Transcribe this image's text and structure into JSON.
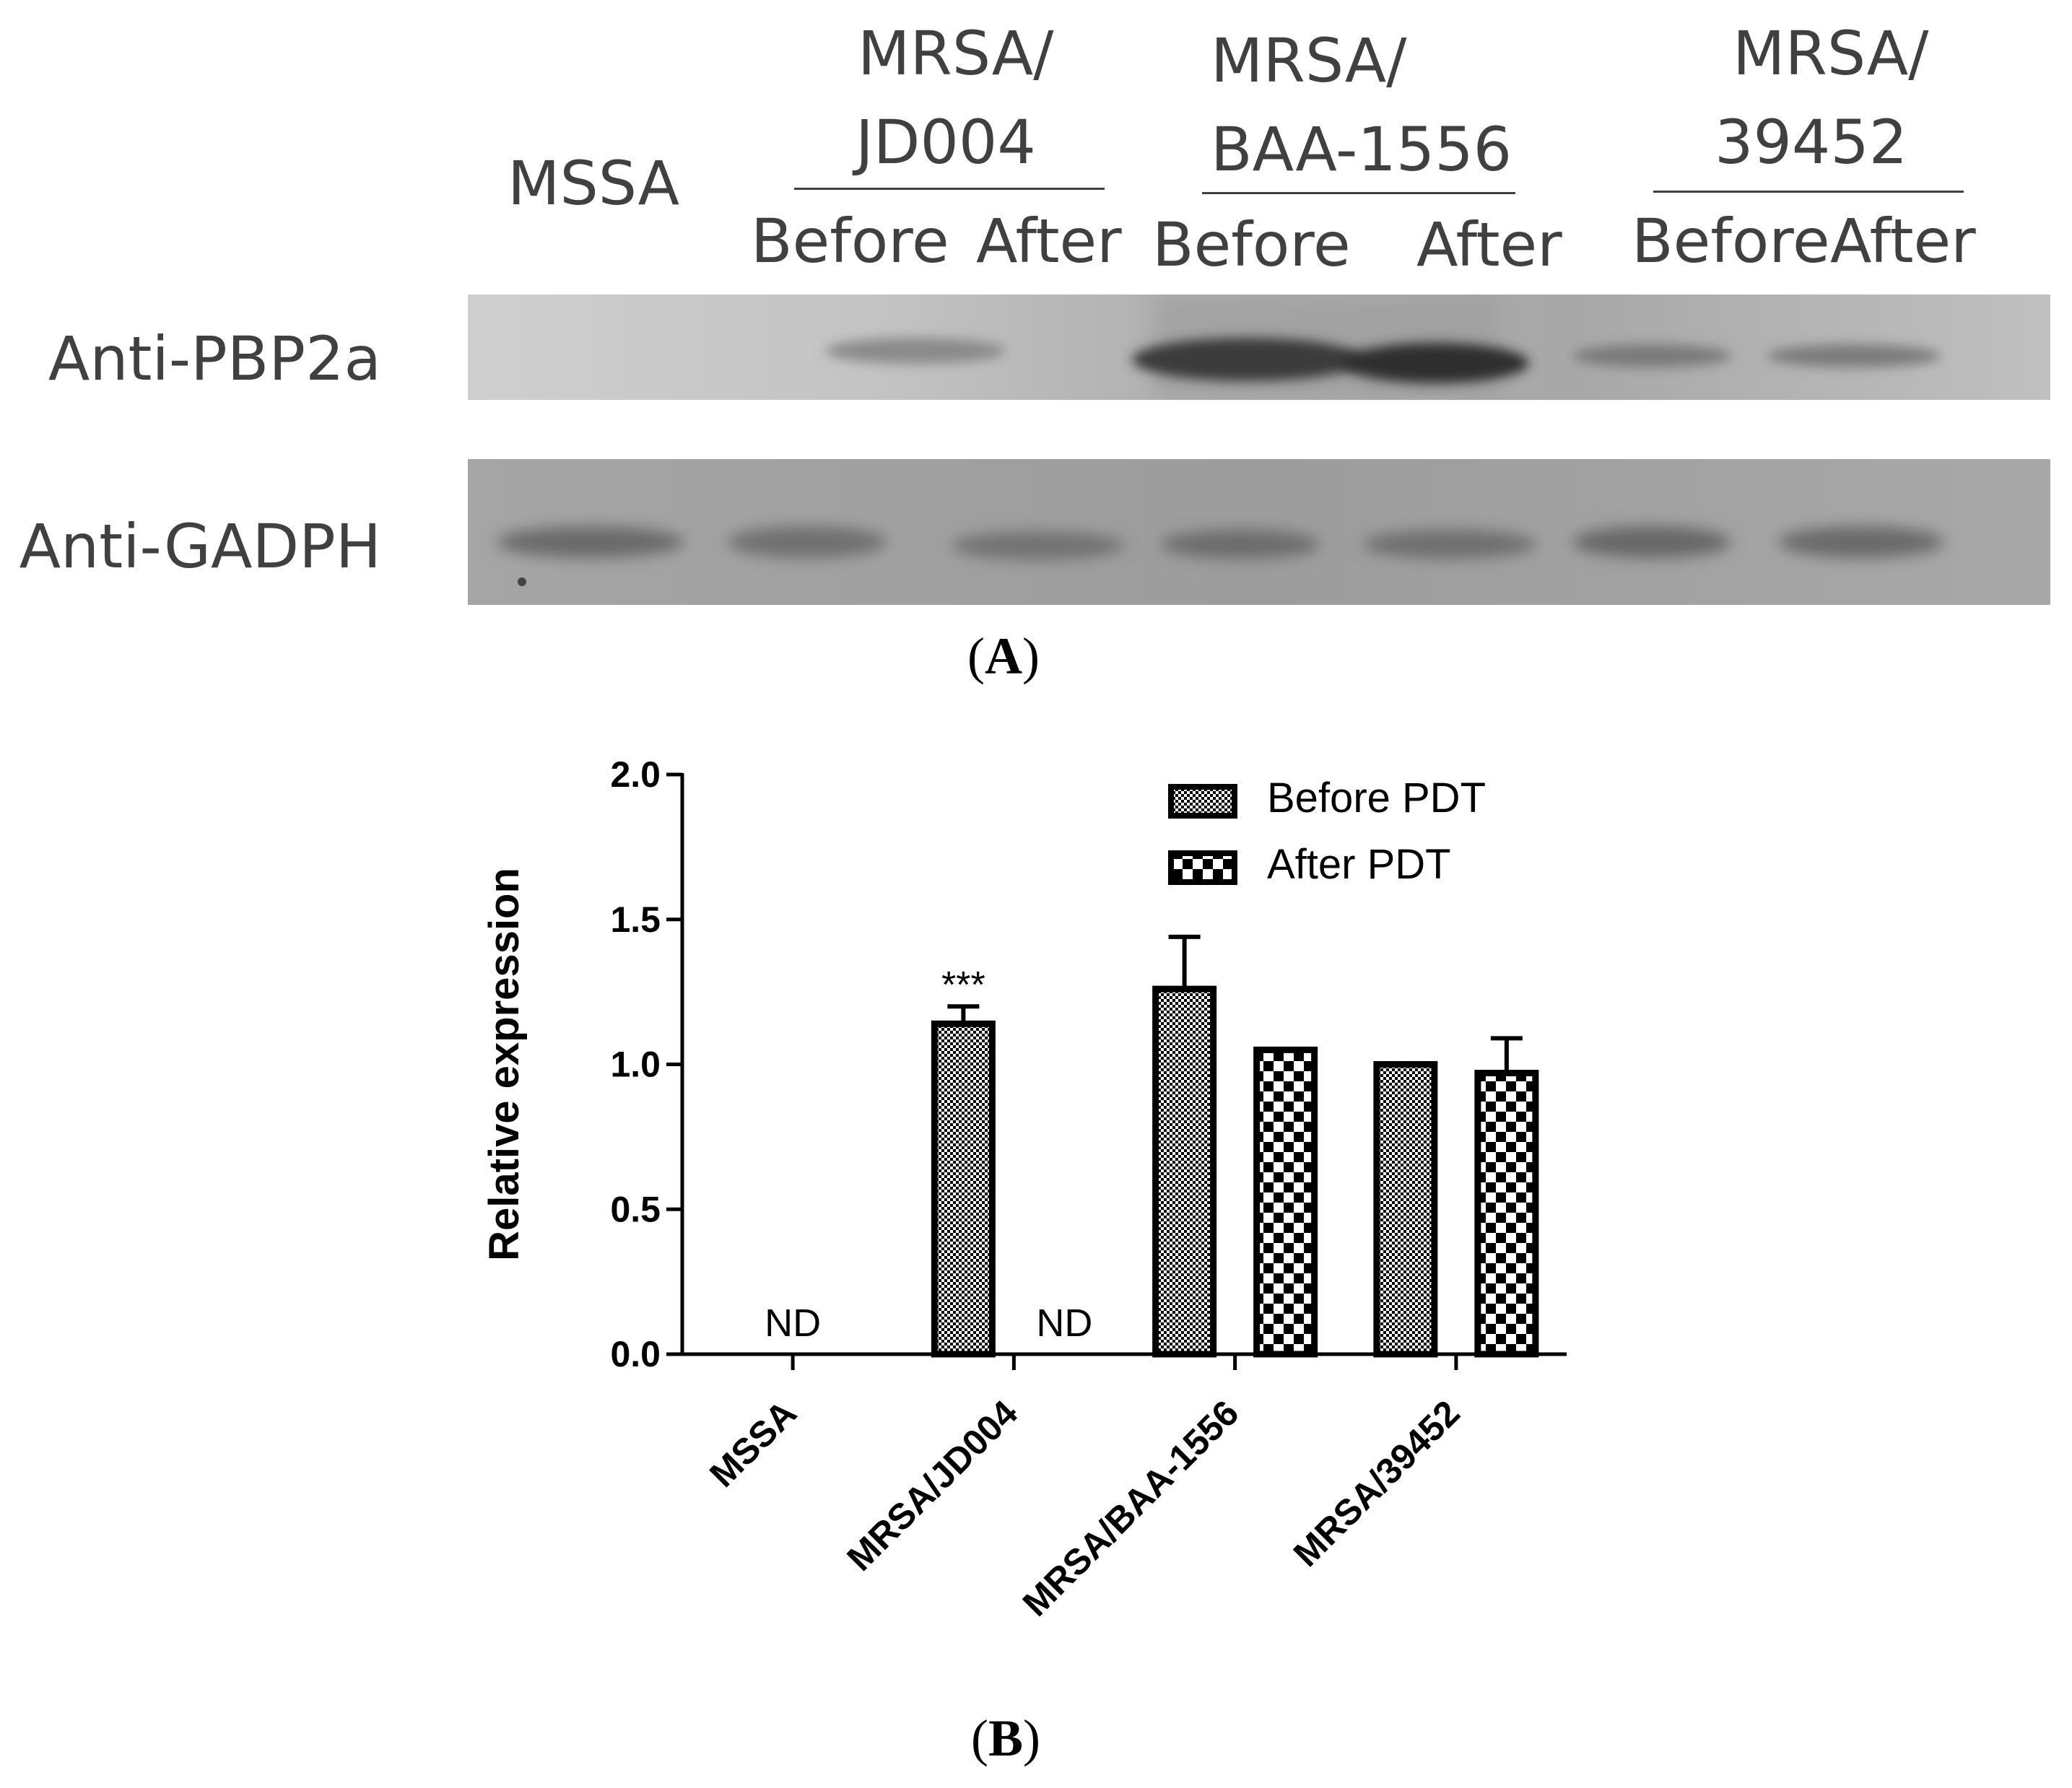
{
  "panel_a": {
    "lanes_header": {
      "mssa": "MSSA",
      "groups": [
        {
          "name_line1": "MRSA/",
          "name_line2": "JD004",
          "before": "Before",
          "after": "After"
        },
        {
          "name_line1": "MRSA/",
          "name_line2": "BAA-1556",
          "before": "Before",
          "after": "After"
        },
        {
          "name_line1": "MRSA/",
          "name_line2": "39452",
          "before": "Before",
          "after": "After"
        }
      ]
    },
    "rows": [
      {
        "label": "Anti-PBP2a"
      },
      {
        "label": "Anti-GADPH"
      }
    ],
    "panel_label": "A"
  },
  "panel_b": {
    "panel_label": "B"
  },
  "chart_data": {
    "type": "bar",
    "categories": [
      "MSSA",
      "MRSA/JD004",
      "MRSA/BAA-1556",
      "MRSA/39452"
    ],
    "series": [
      {
        "name": "Before PDT",
        "values": [
          0,
          1.14,
          1.26,
          1.0
        ],
        "errors": [
          0,
          0.06,
          0.18,
          0
        ],
        "pattern": "fine-check"
      },
      {
        "name": "After PDT",
        "values": [
          0,
          0,
          1.05,
          0.97
        ],
        "errors": [
          0,
          0,
          0,
          0.12
        ],
        "pattern": "coarse-check"
      }
    ],
    "ylabel": "Relative expression",
    "xlabel": "",
    "ylim": [
      0,
      2.0
    ],
    "yticks": [
      "0.0",
      "0.5",
      "1.0",
      "1.5",
      "2.0"
    ],
    "annotations": [
      {
        "text": "ND",
        "category": "MSSA",
        "series": "center"
      },
      {
        "text": "ND",
        "category": "MRSA/JD004",
        "series": "After PDT"
      },
      {
        "text": "***",
        "category": "MRSA/JD004",
        "series": "Before PDT"
      }
    ],
    "legend_position": "top-right",
    "colors": {
      "bar_stroke": "#000000",
      "pattern_ink": "#000000",
      "background": "#ffffff"
    }
  }
}
